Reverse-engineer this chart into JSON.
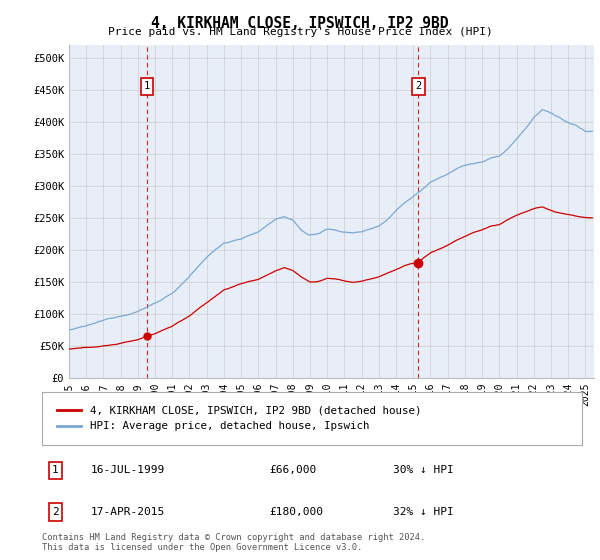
{
  "title": "4, KIRKHAM CLOSE, IPSWICH, IP2 9BD",
  "subtitle": "Price paid vs. HM Land Registry's House Price Index (HPI)",
  "ylabel_ticks": [
    "£0",
    "£50K",
    "£100K",
    "£150K",
    "£200K",
    "£250K",
    "£300K",
    "£350K",
    "£400K",
    "£450K",
    "£500K"
  ],
  "ytick_values": [
    0,
    50000,
    100000,
    150000,
    200000,
    250000,
    300000,
    350000,
    400000,
    450000,
    500000
  ],
  "ylim": [
    0,
    520000
  ],
  "xlim_start": 1995.0,
  "xlim_end": 2025.5,
  "sale1_x": 1999.54,
  "sale1_y": 66000,
  "sale1_label": "1",
  "sale1_date": "16-JUL-1999",
  "sale1_price": "£66,000",
  "sale1_hpi": "30% ↓ HPI",
  "sale2_x": 2015.29,
  "sale2_y": 180000,
  "sale2_label": "2",
  "sale2_date": "17-APR-2015",
  "sale2_price": "£180,000",
  "sale2_hpi": "32% ↓ HPI",
  "legend_line1": "4, KIRKHAM CLOSE, IPSWICH, IP2 9BD (detached house)",
  "legend_line2": "HPI: Average price, detached house, Ipswich",
  "footer1": "Contains HM Land Registry data © Crown copyright and database right 2024.",
  "footer2": "This data is licensed under the Open Government Licence v3.0.",
  "line_color_red": "#cc0000",
  "line_color_blue": "#7aa8d4",
  "plot_bg": "#e8eef8",
  "grid_color": "#cccccc",
  "anno_box_color": "#cc0000",
  "hpi_keypoints": [
    [
      1995.0,
      75000
    ],
    [
      1996.0,
      80000
    ],
    [
      1997.0,
      88000
    ],
    [
      1998.0,
      96000
    ],
    [
      1999.0,
      104000
    ],
    [
      2000.0,
      117000
    ],
    [
      2001.0,
      133000
    ],
    [
      2002.0,
      158000
    ],
    [
      2003.0,
      188000
    ],
    [
      2004.0,
      210000
    ],
    [
      2005.0,
      218000
    ],
    [
      2006.0,
      228000
    ],
    [
      2007.0,
      248000
    ],
    [
      2007.5,
      252000
    ],
    [
      2008.0,
      245000
    ],
    [
      2008.5,
      230000
    ],
    [
      2009.0,
      222000
    ],
    [
      2009.5,
      225000
    ],
    [
      2010.0,
      232000
    ],
    [
      2010.5,
      230000
    ],
    [
      2011.0,
      228000
    ],
    [
      2011.5,
      226000
    ],
    [
      2012.0,
      228000
    ],
    [
      2012.5,
      232000
    ],
    [
      2013.0,
      238000
    ],
    [
      2013.5,
      248000
    ],
    [
      2014.0,
      262000
    ],
    [
      2014.5,
      275000
    ],
    [
      2015.0,
      285000
    ],
    [
      2015.5,
      295000
    ],
    [
      2016.0,
      308000
    ],
    [
      2016.5,
      315000
    ],
    [
      2017.0,
      322000
    ],
    [
      2017.5,
      330000
    ],
    [
      2018.0,
      335000
    ],
    [
      2018.5,
      338000
    ],
    [
      2019.0,
      340000
    ],
    [
      2019.5,
      345000
    ],
    [
      2020.0,
      348000
    ],
    [
      2020.5,
      360000
    ],
    [
      2021.0,
      375000
    ],
    [
      2021.5,
      390000
    ],
    [
      2022.0,
      408000
    ],
    [
      2022.5,
      420000
    ],
    [
      2023.0,
      415000
    ],
    [
      2023.5,
      408000
    ],
    [
      2024.0,
      400000
    ],
    [
      2024.5,
      395000
    ],
    [
      2025.0,
      385000
    ]
  ],
  "price_keypoints": [
    [
      1995.0,
      45000
    ],
    [
      1996.0,
      47000
    ],
    [
      1997.0,
      50000
    ],
    [
      1998.0,
      54000
    ],
    [
      1999.0,
      60000
    ],
    [
      1999.54,
      66000
    ],
    [
      2000.0,
      70000
    ],
    [
      2001.0,
      82000
    ],
    [
      2002.0,
      98000
    ],
    [
      2003.0,
      118000
    ],
    [
      2004.0,
      138000
    ],
    [
      2005.0,
      148000
    ],
    [
      2006.0,
      155000
    ],
    [
      2007.0,
      168000
    ],
    [
      2007.5,
      172000
    ],
    [
      2008.0,
      168000
    ],
    [
      2008.5,
      158000
    ],
    [
      2009.0,
      150000
    ],
    [
      2009.5,
      151000
    ],
    [
      2010.0,
      156000
    ],
    [
      2010.5,
      155000
    ],
    [
      2011.0,
      152000
    ],
    [
      2011.5,
      150000
    ],
    [
      2012.0,
      152000
    ],
    [
      2012.5,
      155000
    ],
    [
      2013.0,
      158000
    ],
    [
      2013.5,
      164000
    ],
    [
      2014.0,
      170000
    ],
    [
      2014.5,
      176000
    ],
    [
      2015.0,
      180000
    ],
    [
      2015.29,
      180000
    ],
    [
      2015.5,
      186000
    ],
    [
      2016.0,
      196000
    ],
    [
      2016.5,
      202000
    ],
    [
      2017.0,
      208000
    ],
    [
      2017.5,
      216000
    ],
    [
      2018.0,
      222000
    ],
    [
      2018.5,
      228000
    ],
    [
      2019.0,
      232000
    ],
    [
      2019.5,
      238000
    ],
    [
      2020.0,
      240000
    ],
    [
      2020.5,
      248000
    ],
    [
      2021.0,
      255000
    ],
    [
      2021.5,
      260000
    ],
    [
      2022.0,
      265000
    ],
    [
      2022.5,
      268000
    ],
    [
      2023.0,
      262000
    ],
    [
      2023.5,
      258000
    ],
    [
      2024.0,
      255000
    ],
    [
      2024.5,
      252000
    ],
    [
      2025.0,
      250000
    ]
  ]
}
